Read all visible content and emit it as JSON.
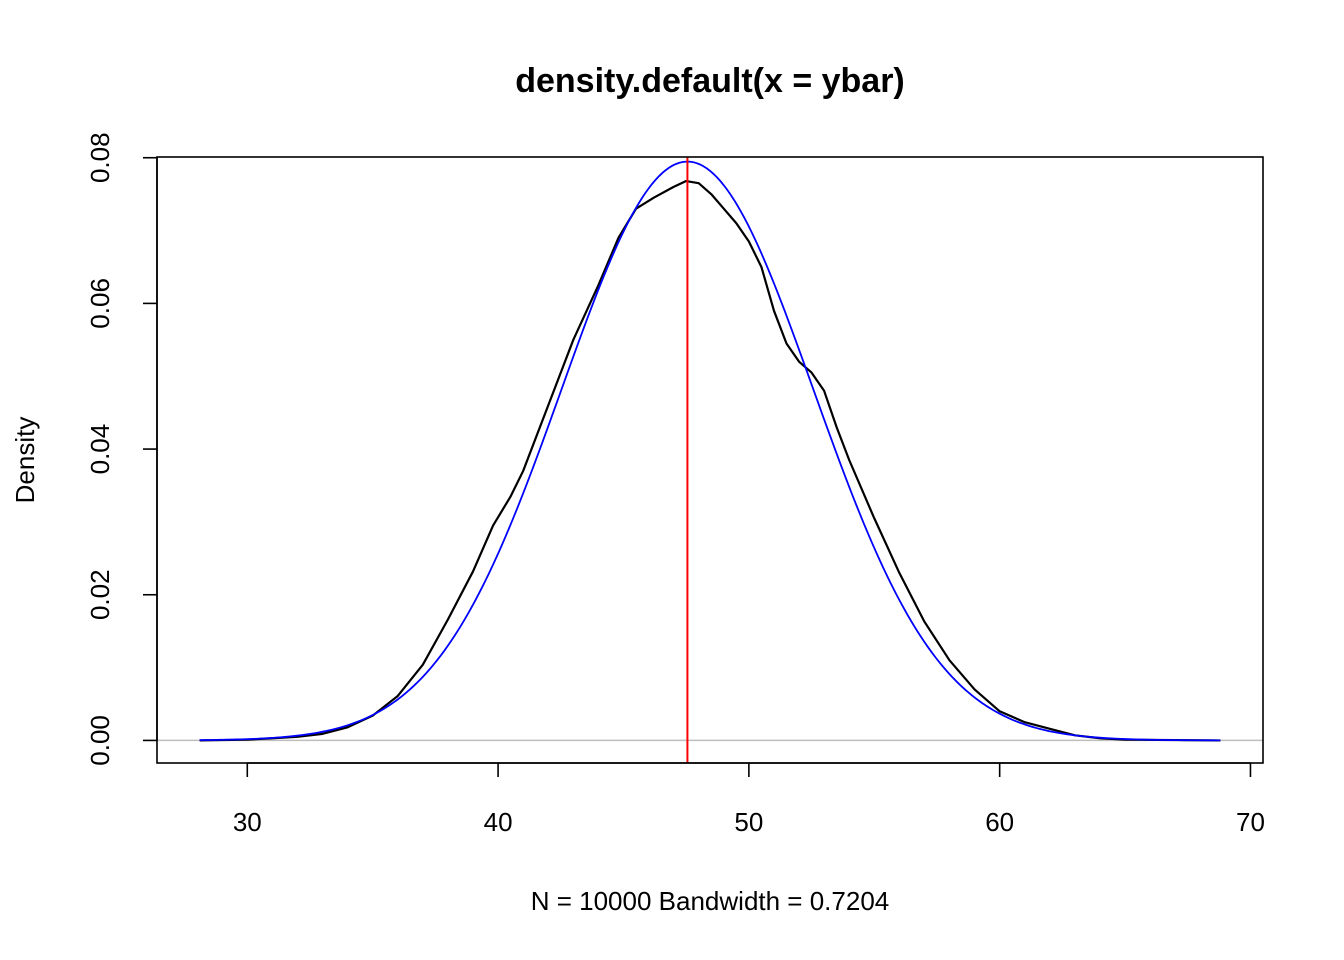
{
  "chart_data": {
    "type": "line",
    "title": "density.default(x = ybar)",
    "xlabel": "N = 10000   Bandwidth = 0.7204",
    "ylabel": "Density",
    "xlim": [
      26.4,
      70.5
    ],
    "ylim": [
      -0.0031,
      0.0801
    ],
    "x_ticks": [
      30,
      40,
      50,
      60,
      70
    ],
    "x_tick_labels": [
      "30",
      "40",
      "50",
      "60",
      "70"
    ],
    "y_ticks": [
      0.0,
      0.02,
      0.04,
      0.06,
      0.08
    ],
    "y_tick_labels": [
      "0.00",
      "0.02",
      "0.04",
      "0.06",
      "0.08"
    ],
    "grid": false,
    "baseline": {
      "y": 0,
      "color": "#bebebe"
    },
    "vline": {
      "x": 47.55,
      "color": "#ff0000"
    },
    "series": [
      {
        "color": "#000000",
        "points": [
          [
            28.1,
            0.0
          ],
          [
            30.0,
            0.0001
          ],
          [
            31.0,
            0.0003
          ],
          [
            32.0,
            0.0005
          ],
          [
            33.0,
            0.0009
          ],
          [
            34.0,
            0.0018
          ],
          [
            35.0,
            0.0034
          ],
          [
            36.0,
            0.0061
          ],
          [
            37.0,
            0.0104
          ],
          [
            38.0,
            0.0166
          ],
          [
            39.0,
            0.0232
          ],
          [
            39.8,
            0.0295
          ],
          [
            40.5,
            0.0335
          ],
          [
            41.0,
            0.037
          ],
          [
            42.0,
            0.046
          ],
          [
            43.0,
            0.055
          ],
          [
            44.0,
            0.0625
          ],
          [
            44.8,
            0.069
          ],
          [
            45.5,
            0.073
          ],
          [
            46.2,
            0.0745
          ],
          [
            47.0,
            0.076
          ],
          [
            47.5,
            0.0768
          ],
          [
            48.0,
            0.0765
          ],
          [
            48.5,
            0.075
          ],
          [
            49.0,
            0.073
          ],
          [
            49.5,
            0.071
          ],
          [
            50.0,
            0.0685
          ],
          [
            50.5,
            0.065
          ],
          [
            51.0,
            0.059
          ],
          [
            51.5,
            0.0545
          ],
          [
            52.0,
            0.052
          ],
          [
            52.5,
            0.0505
          ],
          [
            53.0,
            0.048
          ],
          [
            53.5,
            0.043
          ],
          [
            54.0,
            0.0385
          ],
          [
            55.0,
            0.0305
          ],
          [
            56.0,
            0.023
          ],
          [
            57.0,
            0.0163
          ],
          [
            58.0,
            0.011
          ],
          [
            59.0,
            0.007
          ],
          [
            60.0,
            0.004
          ],
          [
            61.0,
            0.0025
          ],
          [
            62.0,
            0.0016
          ],
          [
            63.0,
            0.0007
          ],
          [
            64.0,
            0.0003
          ],
          [
            65.0,
            0.0001
          ],
          [
            68.8,
            0.0
          ]
        ]
      },
      {
        "color": "#0000ff",
        "mean": 47.55,
        "sd": 5.02,
        "range": [
          28.1,
          68.8
        ]
      }
    ]
  }
}
